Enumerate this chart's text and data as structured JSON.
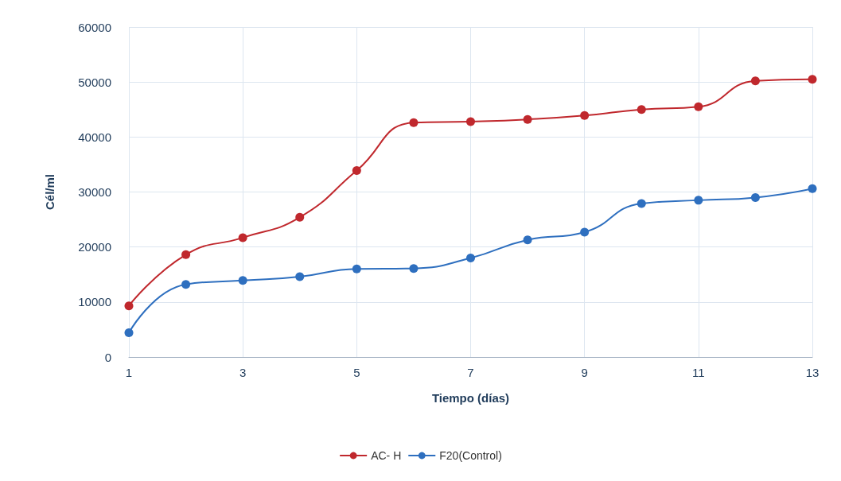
{
  "chart_data": {
    "type": "line",
    "xlabel": "Tiempo (días)",
    "ylabel": "Cél/ml",
    "x": [
      1,
      2,
      3,
      4,
      5,
      6,
      7,
      8,
      9,
      10,
      11,
      12,
      13
    ],
    "series": [
      {
        "name": "AC- H",
        "color": "#c0282d",
        "values": [
          9300,
          18600,
          21700,
          25400,
          33900,
          42600,
          42800,
          43200,
          43900,
          45000,
          45500,
          50200,
          50500
        ]
      },
      {
        "name": "F20(Control)",
        "color": "#2e6fbf",
        "values": [
          4400,
          13200,
          13900,
          14600,
          16000,
          16100,
          18000,
          21300,
          22700,
          27900,
          28500,
          29000,
          30600
        ]
      }
    ],
    "xlim": [
      1,
      13
    ],
    "xticks": [
      1,
      3,
      5,
      7,
      9,
      11,
      13
    ],
    "ylim": [
      0,
      60000
    ],
    "yticks": [
      0,
      10000,
      20000,
      30000,
      40000,
      50000,
      60000
    ],
    "grid": true,
    "legend": "bottom",
    "marker": "circle",
    "line_style": "solid"
  }
}
